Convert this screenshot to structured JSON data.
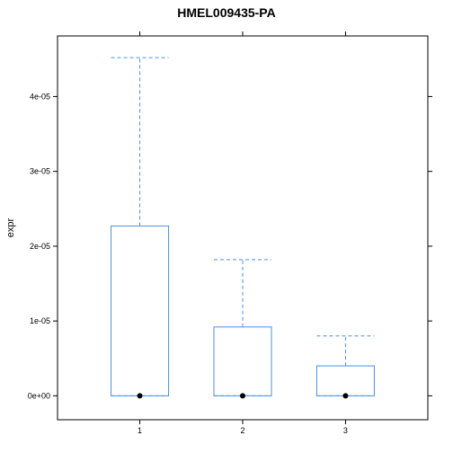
{
  "chart_data": {
    "type": "box",
    "title": "HMEL009435-PA",
    "ylabel": "expr",
    "xlabel": "",
    "categories": [
      "1",
      "2",
      "3"
    ],
    "y_ticks": [
      0,
      1e-05,
      2e-05,
      3e-05,
      4e-05
    ],
    "y_tick_labels": [
      "0e+00",
      "1e-05",
      "2e-05",
      "3e-05",
      "4e-05"
    ],
    "ylim": [
      -3.2e-06,
      4.81e-05
    ],
    "boxes": [
      {
        "category": "1",
        "whisker_low": 0,
        "q1": 0,
        "median": 0,
        "q3": 2.27e-05,
        "whisker_high": 4.52e-05
      },
      {
        "category": "2",
        "whisker_low": 0,
        "q1": 0,
        "median": 0,
        "q3": 9.2e-06,
        "whisker_high": 1.82e-05
      },
      {
        "category": "3",
        "whisker_low": 0,
        "q1": 0,
        "median": 0,
        "q3": 4e-06,
        "whisker_high": 8e-06
      }
    ],
    "colors": {
      "box": "#4a90e2",
      "whisker": "#4a90e2",
      "median_dot": "#000000"
    },
    "grid": false
  }
}
